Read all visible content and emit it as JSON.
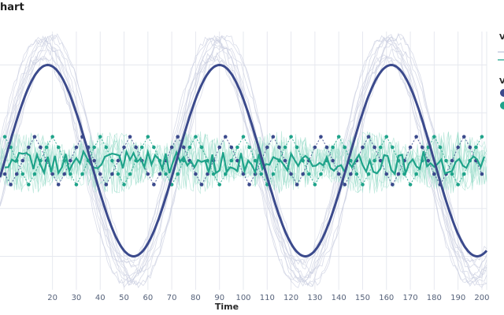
{
  "chart_data": {
    "type": "line",
    "title": "hart",
    "xlabel": "Time",
    "ylabel": "",
    "xlim": [
      -2,
      202
    ],
    "x_ticks": [
      20,
      30,
      40,
      50,
      60,
      70,
      80,
      90,
      100,
      110,
      120,
      130,
      140,
      150,
      160,
      170,
      180,
      190,
      200
    ],
    "grid": true,
    "legend_position": "right",
    "legend_group_titles": [
      "V",
      "V"
    ],
    "colors": {
      "sine": "#3b4a8c",
      "noise": "#1fa38a",
      "sine_light": "#c9cde0",
      "noise_light": "#8fd8c5",
      "dot_dark": "#3b4a8c",
      "dot_teal": "#1fa38a"
    },
    "series": [
      {
        "kind": "sine",
        "amplitude": 1.0,
        "period": 72,
        "peak_x": 18,
        "mean": 0.0,
        "x_end": 202
      },
      {
        "kind": "noise",
        "mean": -0.02,
        "spread": 0.12,
        "x_end": 202
      },
      {
        "kind": "dots",
        "x_start": 0,
        "x_step": 2.5,
        "levels": [
          0.25,
          0.14,
          0.0,
          -0.14,
          -0.25
        ]
      }
    ]
  }
}
